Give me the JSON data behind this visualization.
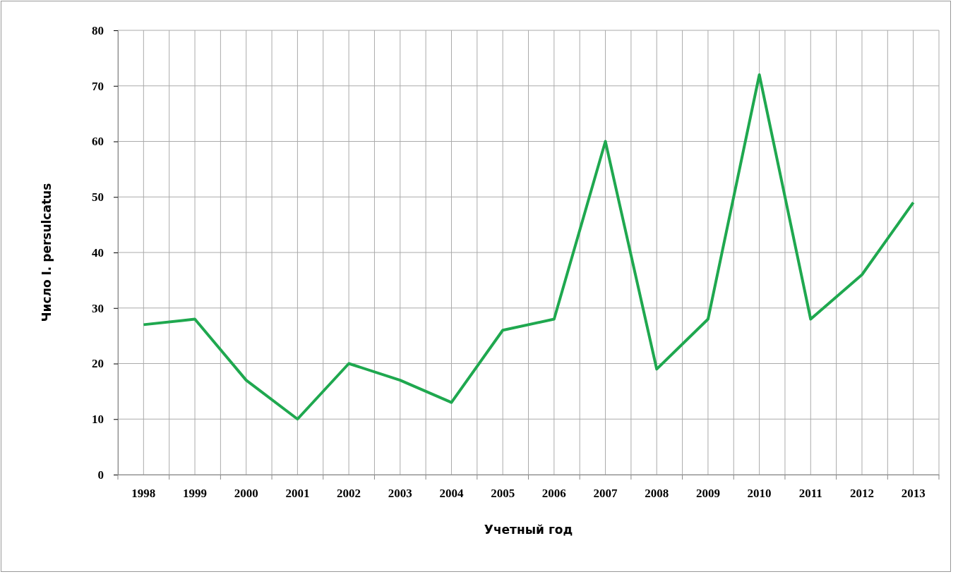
{
  "chart_data": {
    "type": "line",
    "xlabel": "Учетный год",
    "ylabel": "Число I. persulcatus",
    "categories": [
      "1998",
      "1999",
      "2000",
      "2001",
      "2002",
      "2003",
      "2004",
      "2005",
      "2006",
      "2007",
      "2008",
      "2009",
      "2010",
      "2011",
      "2012",
      "2013"
    ],
    "series": [
      {
        "color": "#1fa84f",
        "values": [
          27,
          28,
          17,
          10,
          20,
          17,
          13,
          26,
          28,
          60,
          19,
          28,
          72,
          28,
          36,
          49
        ]
      }
    ],
    "ylim": [
      0,
      80
    ],
    "yticks": [
      0,
      10,
      20,
      30,
      40,
      50,
      60,
      70,
      80
    ],
    "grid": true,
    "marker": "none",
    "line_style": "solid"
  }
}
